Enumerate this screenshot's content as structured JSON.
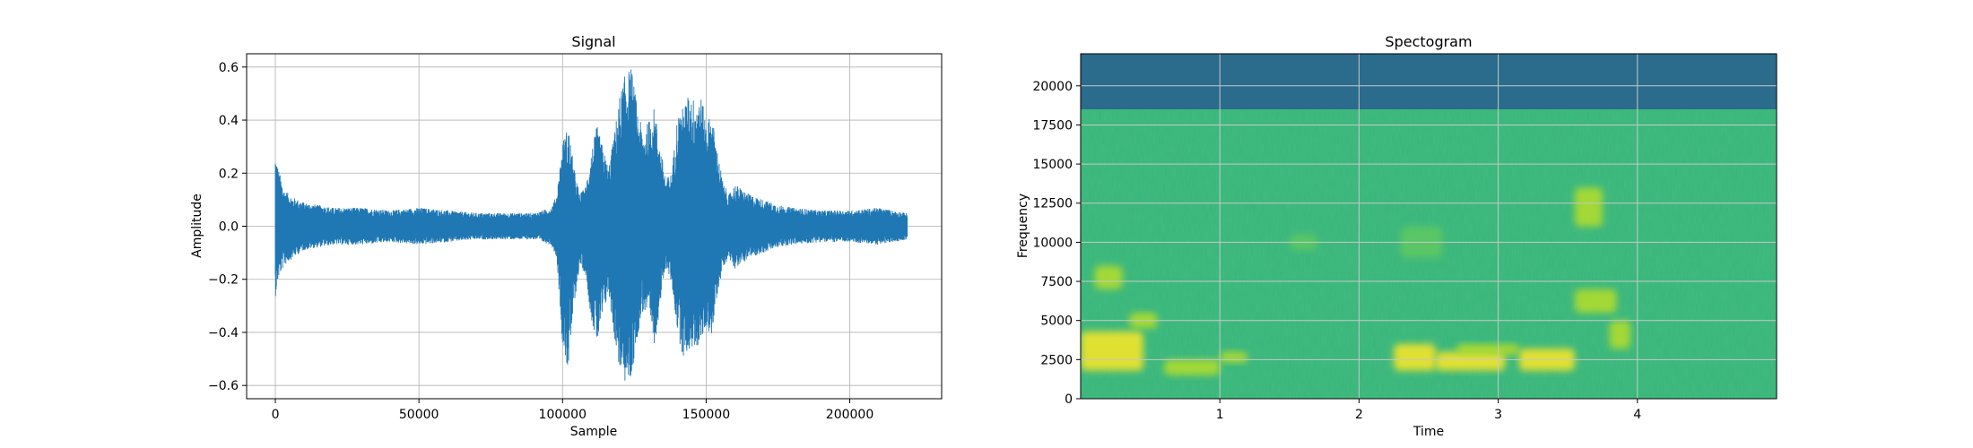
{
  "chart_data": [
    {
      "type": "line",
      "title": "Signal",
      "xlabel": "Sample",
      "ylabel": "Amplitude",
      "xlim": [
        -10000,
        232000
      ],
      "ylim": [
        -0.65,
        0.65
      ],
      "xticks": [
        0,
        50000,
        100000,
        150000,
        200000
      ],
      "yticks": [
        -0.6,
        -0.4,
        -0.2,
        0.0,
        0.2,
        0.4,
        0.6
      ],
      "xtick_labels": [
        "0",
        "50000",
        "100000",
        "150000",
        "200000"
      ],
      "ytick_labels": [
        "−0.6",
        "−0.4",
        "−0.2",
        "0.0",
        "0.2",
        "0.4",
        "0.6"
      ],
      "grid": true,
      "color": "#1f77b4",
      "envelope": {
        "x": [
          0,
          1000,
          3000,
          6000,
          10000,
          20000,
          30000,
          40000,
          50000,
          60000,
          70000,
          80000,
          90000,
          96000,
          98000,
          100000,
          102000,
          104000,
          106000,
          108000,
          110000,
          112000,
          114000,
          116000,
          118000,
          120000,
          122000,
          124000,
          126000,
          128000,
          130000,
          132000,
          134000,
          136000,
          138000,
          140000,
          142000,
          144000,
          146000,
          148000,
          150000,
          152000,
          154000,
          156000,
          158000,
          160000,
          165000,
          170000,
          175000,
          180000,
          190000,
          200000,
          210000,
          215000,
          220000
        ],
        "upper": [
          0.28,
          0.22,
          0.14,
          0.11,
          0.09,
          0.07,
          0.07,
          0.06,
          0.07,
          0.06,
          0.05,
          0.05,
          0.05,
          0.07,
          0.12,
          0.32,
          0.38,
          0.22,
          0.12,
          0.15,
          0.28,
          0.38,
          0.3,
          0.22,
          0.35,
          0.5,
          0.58,
          0.6,
          0.45,
          0.35,
          0.4,
          0.45,
          0.3,
          0.18,
          0.2,
          0.42,
          0.45,
          0.5,
          0.48,
          0.5,
          0.4,
          0.42,
          0.28,
          0.16,
          0.12,
          0.16,
          0.12,
          0.1,
          0.08,
          0.07,
          0.06,
          0.06,
          0.07,
          0.06,
          0.05
        ],
        "lower": [
          -0.27,
          -0.2,
          -0.15,
          -0.12,
          -0.09,
          -0.07,
          -0.07,
          -0.06,
          -0.07,
          -0.06,
          -0.05,
          -0.05,
          -0.05,
          -0.07,
          -0.12,
          -0.45,
          -0.55,
          -0.3,
          -0.15,
          -0.18,
          -0.35,
          -0.45,
          -0.35,
          -0.25,
          -0.42,
          -0.55,
          -0.6,
          -0.58,
          -0.42,
          -0.32,
          -0.35,
          -0.45,
          -0.3,
          -0.15,
          -0.22,
          -0.4,
          -0.5,
          -0.47,
          -0.46,
          -0.45,
          -0.38,
          -0.42,
          -0.25,
          -0.15,
          -0.12,
          -0.16,
          -0.12,
          -0.1,
          -0.08,
          -0.07,
          -0.06,
          -0.06,
          -0.07,
          -0.06,
          -0.05
        ]
      }
    },
    {
      "type": "heatmap",
      "title": "Spectogram",
      "xlabel": "Time",
      "ylabel": "Frequency",
      "xlim": [
        0.0,
        5.0
      ],
      "ylim": [
        0,
        22050
      ],
      "xticks": [
        1,
        2,
        3,
        4
      ],
      "yticks": [
        0,
        2500,
        5000,
        7500,
        10000,
        12500,
        15000,
        17500,
        20000
      ],
      "xtick_labels": [
        "1",
        "2",
        "3",
        "4"
      ],
      "ytick_labels": [
        "0",
        "2500",
        "5000",
        "7500",
        "10000",
        "12500",
        "15000",
        "17500",
        "20000"
      ],
      "grid": true,
      "colormap": "viridis",
      "colors": {
        "cutoff_band": "#2b6b8c",
        "background": "#35b779",
        "mid": "#5ec962",
        "high": "#b5de2b",
        "peak": "#fde725"
      },
      "cutoff_frequency": 18500,
      "hotspots": [
        {
          "t": [
            0.0,
            0.45
          ],
          "f": [
            1800,
            4300
          ],
          "level": "peak"
        },
        {
          "t": [
            0.1,
            0.3
          ],
          "f": [
            7000,
            8500
          ],
          "level": "high"
        },
        {
          "t": [
            0.35,
            0.55
          ],
          "f": [
            4500,
            5500
          ],
          "level": "high"
        },
        {
          "t": [
            0.6,
            1.0
          ],
          "f": [
            1500,
            2500
          ],
          "level": "high"
        },
        {
          "t": [
            1.0,
            1.2
          ],
          "f": [
            2300,
            3000
          ],
          "level": "high"
        },
        {
          "t": [
            2.25,
            2.55
          ],
          "f": [
            1800,
            3500
          ],
          "level": "peak"
        },
        {
          "t": [
            2.55,
            3.05
          ],
          "f": [
            1800,
            3000
          ],
          "level": "peak"
        },
        {
          "t": [
            2.7,
            3.15
          ],
          "f": [
            2800,
            3500
          ],
          "level": "high"
        },
        {
          "t": [
            3.15,
            3.55
          ],
          "f": [
            1800,
            3200
          ],
          "level": "peak"
        },
        {
          "t": [
            3.55,
            3.85
          ],
          "f": [
            5500,
            7000
          ],
          "level": "high"
        },
        {
          "t": [
            3.55,
            3.75
          ],
          "f": [
            11000,
            13500
          ],
          "level": "high"
        },
        {
          "t": [
            3.8,
            3.95
          ],
          "f": [
            3200,
            5000
          ],
          "level": "high"
        },
        {
          "t": [
            1.5,
            1.7
          ],
          "f": [
            9500,
            10500
          ],
          "level": "mid"
        },
        {
          "t": [
            2.3,
            2.6
          ],
          "f": [
            9000,
            11000
          ],
          "level": "mid"
        }
      ]
    }
  ]
}
